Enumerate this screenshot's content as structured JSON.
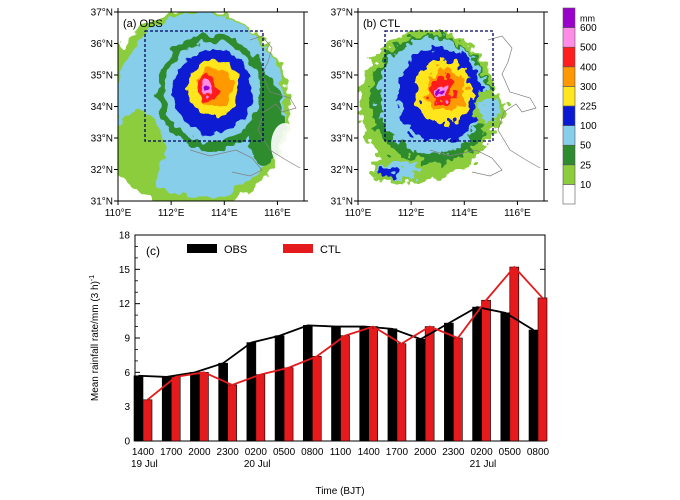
{
  "maps": [
    {
      "label": "(a) OBS",
      "lon_ticks": [
        "110°E",
        "112°E",
        "114°E",
        "116°E"
      ],
      "lat_ticks": [
        "31°N",
        "32°N",
        "33°N",
        "34°N",
        "35°N",
        "36°N",
        "37°N"
      ]
    },
    {
      "label": "(b) CTL",
      "lon_ticks": [
        "110°E",
        "112°E",
        "114°E",
        "116°E"
      ],
      "lat_ticks": [
        "31°N",
        "32°N",
        "33°N",
        "34°N",
        "35°N",
        "36°N",
        "37°N"
      ]
    }
  ],
  "colorbar": {
    "unit": "mm",
    "levels": [
      "10",
      "25",
      "50",
      "100",
      "225",
      "300",
      "400",
      "500",
      "600"
    ],
    "colors": [
      "#ffffff",
      "#8ccd3c",
      "#2e8b2e",
      "#87ceeb",
      "#0a1ad2",
      "#ffe61e",
      "#ff9900",
      "#ff1e1e",
      "#ff8ce6",
      "#9900cc"
    ]
  },
  "chart_data": {
    "type": "bar",
    "panel_label": "(c)",
    "categories": [
      "1400",
      "1700",
      "2000",
      "2300",
      "0200",
      "0500",
      "0800",
      "1100",
      "1400",
      "1700",
      "2000",
      "2300",
      "0200",
      "0500",
      "0800"
    ],
    "date_labels": [
      {
        "index": 0,
        "text": "19 Jul"
      },
      {
        "index": 4,
        "text": "20 Jul"
      },
      {
        "index": 12,
        "text": "21 Jul"
      }
    ],
    "series": [
      {
        "name": "OBS",
        "color": "#000000",
        "values": [
          5.7,
          5.6,
          6.0,
          6.8,
          8.6,
          9.2,
          10.1,
          10.0,
          10.0,
          9.8,
          8.9,
          10.3,
          11.7,
          11.2,
          9.7
        ]
      },
      {
        "name": "CTL",
        "color": "#e41a1c",
        "values": [
          3.6,
          5.6,
          6.0,
          4.9,
          5.8,
          6.4,
          7.4,
          9.2,
          10.0,
          8.5,
          10.0,
          9.0,
          12.3,
          15.2,
          12.5
        ]
      }
    ],
    "ylabel": "Mean rainfall rate/mm (3 h)",
    "ylabel_sup": "-1",
    "xlabel": "Time (BJT)",
    "ylim": [
      0,
      18
    ],
    "yticks": [
      0,
      3,
      6,
      9,
      12,
      15,
      18
    ],
    "legend_position": "top-left"
  }
}
